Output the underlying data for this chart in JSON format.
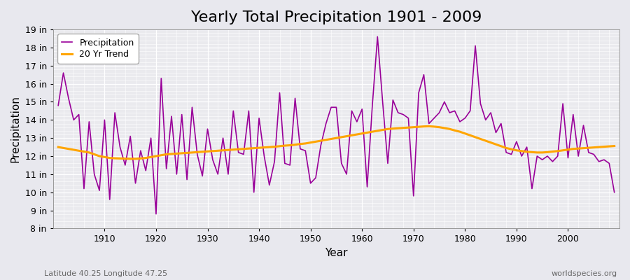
{
  "title": "Yearly Total Precipitation 1901 - 2009",
  "xlabel": "Year",
  "ylabel": "Precipitation",
  "lat_lon_label": "Latitude 40.25 Longitude 47.25",
  "watermark": "worldspecies.org",
  "years": [
    1901,
    1902,
    1903,
    1904,
    1905,
    1906,
    1907,
    1908,
    1909,
    1910,
    1911,
    1912,
    1913,
    1914,
    1915,
    1916,
    1917,
    1918,
    1919,
    1920,
    1921,
    1922,
    1923,
    1924,
    1925,
    1926,
    1927,
    1928,
    1929,
    1930,
    1931,
    1932,
    1933,
    1934,
    1935,
    1936,
    1937,
    1938,
    1939,
    1940,
    1941,
    1942,
    1943,
    1944,
    1945,
    1946,
    1947,
    1948,
    1949,
    1950,
    1951,
    1952,
    1953,
    1954,
    1955,
    1956,
    1957,
    1958,
    1959,
    1960,
    1961,
    1962,
    1963,
    1964,
    1965,
    1966,
    1967,
    1968,
    1969,
    1970,
    1971,
    1972,
    1973,
    1974,
    1975,
    1976,
    1977,
    1978,
    1979,
    1980,
    1981,
    1982,
    1983,
    1984,
    1985,
    1986,
    1987,
    1988,
    1989,
    1990,
    1991,
    1992,
    1993,
    1994,
    1995,
    1996,
    1997,
    1998,
    1999,
    2000,
    2001,
    2002,
    2003,
    2004,
    2005,
    2006,
    2007,
    2008,
    2009
  ],
  "precipitation": [
    14.8,
    16.6,
    15.2,
    14.0,
    14.3,
    10.2,
    13.9,
    11.0,
    10.1,
    14.0,
    9.6,
    14.4,
    12.5,
    11.5,
    13.1,
    10.5,
    12.3,
    11.2,
    13.0,
    8.8,
    16.3,
    11.3,
    14.2,
    11.0,
    14.3,
    10.7,
    14.7,
    12.1,
    10.9,
    13.5,
    11.8,
    11.0,
    13.0,
    11.0,
    14.5,
    12.2,
    12.1,
    14.5,
    10.0,
    14.1,
    12.0,
    10.4,
    11.7,
    15.5,
    11.6,
    11.5,
    15.2,
    12.4,
    12.3,
    10.5,
    10.8,
    12.6,
    13.8,
    14.7,
    14.7,
    11.6,
    11.0,
    14.5,
    13.9,
    14.6,
    10.3,
    14.8,
    18.6,
    15.0,
    11.6,
    15.1,
    14.4,
    14.3,
    14.1,
    9.8,
    15.5,
    16.5,
    13.8,
    14.1,
    14.4,
    15.0,
    14.4,
    14.5,
    13.9,
    14.1,
    14.5,
    18.1,
    14.9,
    14.0,
    14.4,
    13.3,
    13.8,
    12.2,
    12.1,
    12.8,
    12.0,
    12.5,
    10.2,
    12.0,
    11.8,
    12.0,
    11.7,
    12.0,
    14.9,
    11.9,
    14.3,
    12.0,
    13.7,
    12.2,
    12.1,
    11.7,
    11.8,
    11.6,
    10.0
  ],
  "trend": [
    12.5,
    12.45,
    12.4,
    12.35,
    12.3,
    12.25,
    12.2,
    12.1,
    12.0,
    11.95,
    11.9,
    11.88,
    11.87,
    11.86,
    11.85,
    11.85,
    11.87,
    11.9,
    11.95,
    12.0,
    12.05,
    12.1,
    12.12,
    12.14,
    12.16,
    12.18,
    12.2,
    12.22,
    12.24,
    12.26,
    12.28,
    12.3,
    12.32,
    12.34,
    12.36,
    12.38,
    12.4,
    12.42,
    12.44,
    12.46,
    12.48,
    12.5,
    12.52,
    12.55,
    12.58,
    12.6,
    12.63,
    12.67,
    12.7,
    12.75,
    12.8,
    12.85,
    12.9,
    12.95,
    13.0,
    13.05,
    13.1,
    13.15,
    13.2,
    13.25,
    13.3,
    13.35,
    13.4,
    13.45,
    13.5,
    13.52,
    13.54,
    13.56,
    13.58,
    13.6,
    13.62,
    13.64,
    13.65,
    13.63,
    13.6,
    13.55,
    13.5,
    13.42,
    13.35,
    13.25,
    13.15,
    13.05,
    12.95,
    12.85,
    12.75,
    12.65,
    12.55,
    12.45,
    12.38,
    12.32,
    12.28,
    12.24,
    12.22,
    12.2,
    12.2,
    12.22,
    12.25,
    12.28,
    12.32,
    12.36,
    12.4,
    12.42,
    12.44,
    12.46,
    12.48,
    12.5,
    12.52,
    12.54,
    12.56
  ],
  "precip_color": "#990099",
  "trend_color": "#FFA500",
  "bg_color": "#E8E8EE",
  "plot_bg_color": "#EAEAEE",
  "grid_color": "#FFFFFF",
  "ylim": [
    8,
    19
  ],
  "yticks": [
    8,
    9,
    10,
    11,
    12,
    13,
    14,
    15,
    16,
    17,
    18,
    19
  ],
  "ytick_labels": [
    "8 in",
    "9 in",
    "10 in",
    "11 in",
    "12 in",
    "13 in",
    "14 in",
    "15 in",
    "16 in",
    "17 in",
    "18 in",
    "19 in"
  ],
  "xlim": [
    1900,
    2010
  ],
  "xticks": [
    1910,
    1920,
    1930,
    1940,
    1950,
    1960,
    1970,
    1980,
    1990,
    2000
  ],
  "title_fontsize": 16,
  "axis_fontsize": 11,
  "tick_fontsize": 9
}
